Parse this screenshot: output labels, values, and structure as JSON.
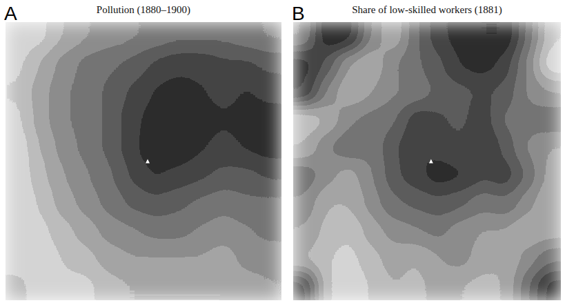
{
  "chart_data": [
    {
      "type": "heatmap",
      "panel": "A",
      "title": "Pollution (1880–1900)",
      "zlim": [
        0,
        1
      ],
      "cells": [
        [
          0.1,
          0.15,
          0.3,
          0.4,
          0.45,
          0.5,
          0.55,
          0.6,
          0.6,
          0.6,
          0.55,
          0.5
        ],
        [
          0.15,
          0.3,
          0.45,
          0.55,
          0.6,
          0.65,
          0.75,
          0.8,
          0.8,
          0.75,
          0.75,
          0.7
        ],
        [
          0.2,
          0.35,
          0.5,
          0.55,
          0.65,
          0.75,
          0.85,
          0.9,
          0.85,
          0.8,
          0.85,
          0.8
        ],
        [
          0.15,
          0.35,
          0.5,
          0.55,
          0.65,
          0.8,
          0.9,
          0.95,
          0.9,
          0.85,
          0.9,
          0.9
        ],
        [
          0.1,
          0.3,
          0.45,
          0.55,
          0.65,
          0.8,
          0.95,
          0.95,
          0.85,
          0.8,
          0.85,
          0.9
        ],
        [
          0.1,
          0.25,
          0.4,
          0.5,
          0.6,
          0.75,
          0.85,
          0.8,
          0.75,
          0.7,
          0.7,
          0.75
        ],
        [
          0.1,
          0.2,
          0.35,
          0.45,
          0.55,
          0.65,
          0.7,
          0.65,
          0.6,
          0.55,
          0.6,
          0.6
        ],
        [
          0.1,
          0.15,
          0.25,
          0.35,
          0.45,
          0.5,
          0.55,
          0.55,
          0.5,
          0.45,
          0.5,
          0.55
        ],
        [
          0.1,
          0.1,
          0.2,
          0.25,
          0.35,
          0.4,
          0.4,
          0.4,
          0.4,
          0.35,
          0.45,
          0.45
        ],
        [
          0.25,
          0.1,
          0.15,
          0.15,
          0.25,
          0.3,
          0.3,
          0.3,
          0.3,
          0.3,
          0.35,
          0.4
        ]
      ]
    },
    {
      "type": "heatmap",
      "panel": "B",
      "title": "Share of low-skilled workers (1881)",
      "zlim": [
        0,
        1
      ],
      "cells": [
        [
          0.5,
          0.95,
          0.9,
          0.5,
          0.3,
          0.6,
          0.8,
          0.9,
          0.95,
          0.95,
          0.6,
          0.2
        ],
        [
          0.9,
          0.7,
          0.4,
          0.3,
          0.5,
          0.6,
          0.7,
          0.85,
          0.9,
          0.8,
          0.5,
          0.1
        ],
        [
          0.85,
          0.5,
          0.3,
          0.4,
          0.5,
          0.55,
          0.65,
          0.7,
          0.75,
          0.7,
          0.5,
          0.4
        ],
        [
          0.2,
          0.3,
          0.5,
          0.55,
          0.6,
          0.8,
          0.75,
          0.7,
          0.8,
          0.6,
          0.55,
          0.6
        ],
        [
          0.3,
          0.5,
          0.6,
          0.55,
          0.7,
          0.85,
          0.8,
          0.75,
          0.85,
          0.7,
          0.5,
          0.4
        ],
        [
          0.6,
          0.45,
          0.35,
          0.5,
          0.7,
          0.8,
          0.9,
          0.85,
          0.75,
          0.8,
          0.6,
          0.35
        ],
        [
          0.5,
          0.3,
          0.3,
          0.45,
          0.6,
          0.65,
          0.7,
          0.65,
          0.55,
          0.6,
          0.45,
          0.3
        ],
        [
          0.4,
          0.25,
          0.2,
          0.35,
          0.45,
          0.5,
          0.55,
          0.45,
          0.4,
          0.4,
          0.3,
          0.35
        ],
        [
          0.3,
          0.2,
          0.15,
          0.25,
          0.35,
          0.3,
          0.4,
          0.45,
          0.35,
          0.3,
          0.45,
          0.6
        ],
        [
          0.8,
          0.2,
          0.1,
          0.2,
          0.3,
          0.25,
          0.35,
          0.3,
          0.25,
          0.3,
          0.6,
          0.9
        ]
      ]
    }
  ]
}
